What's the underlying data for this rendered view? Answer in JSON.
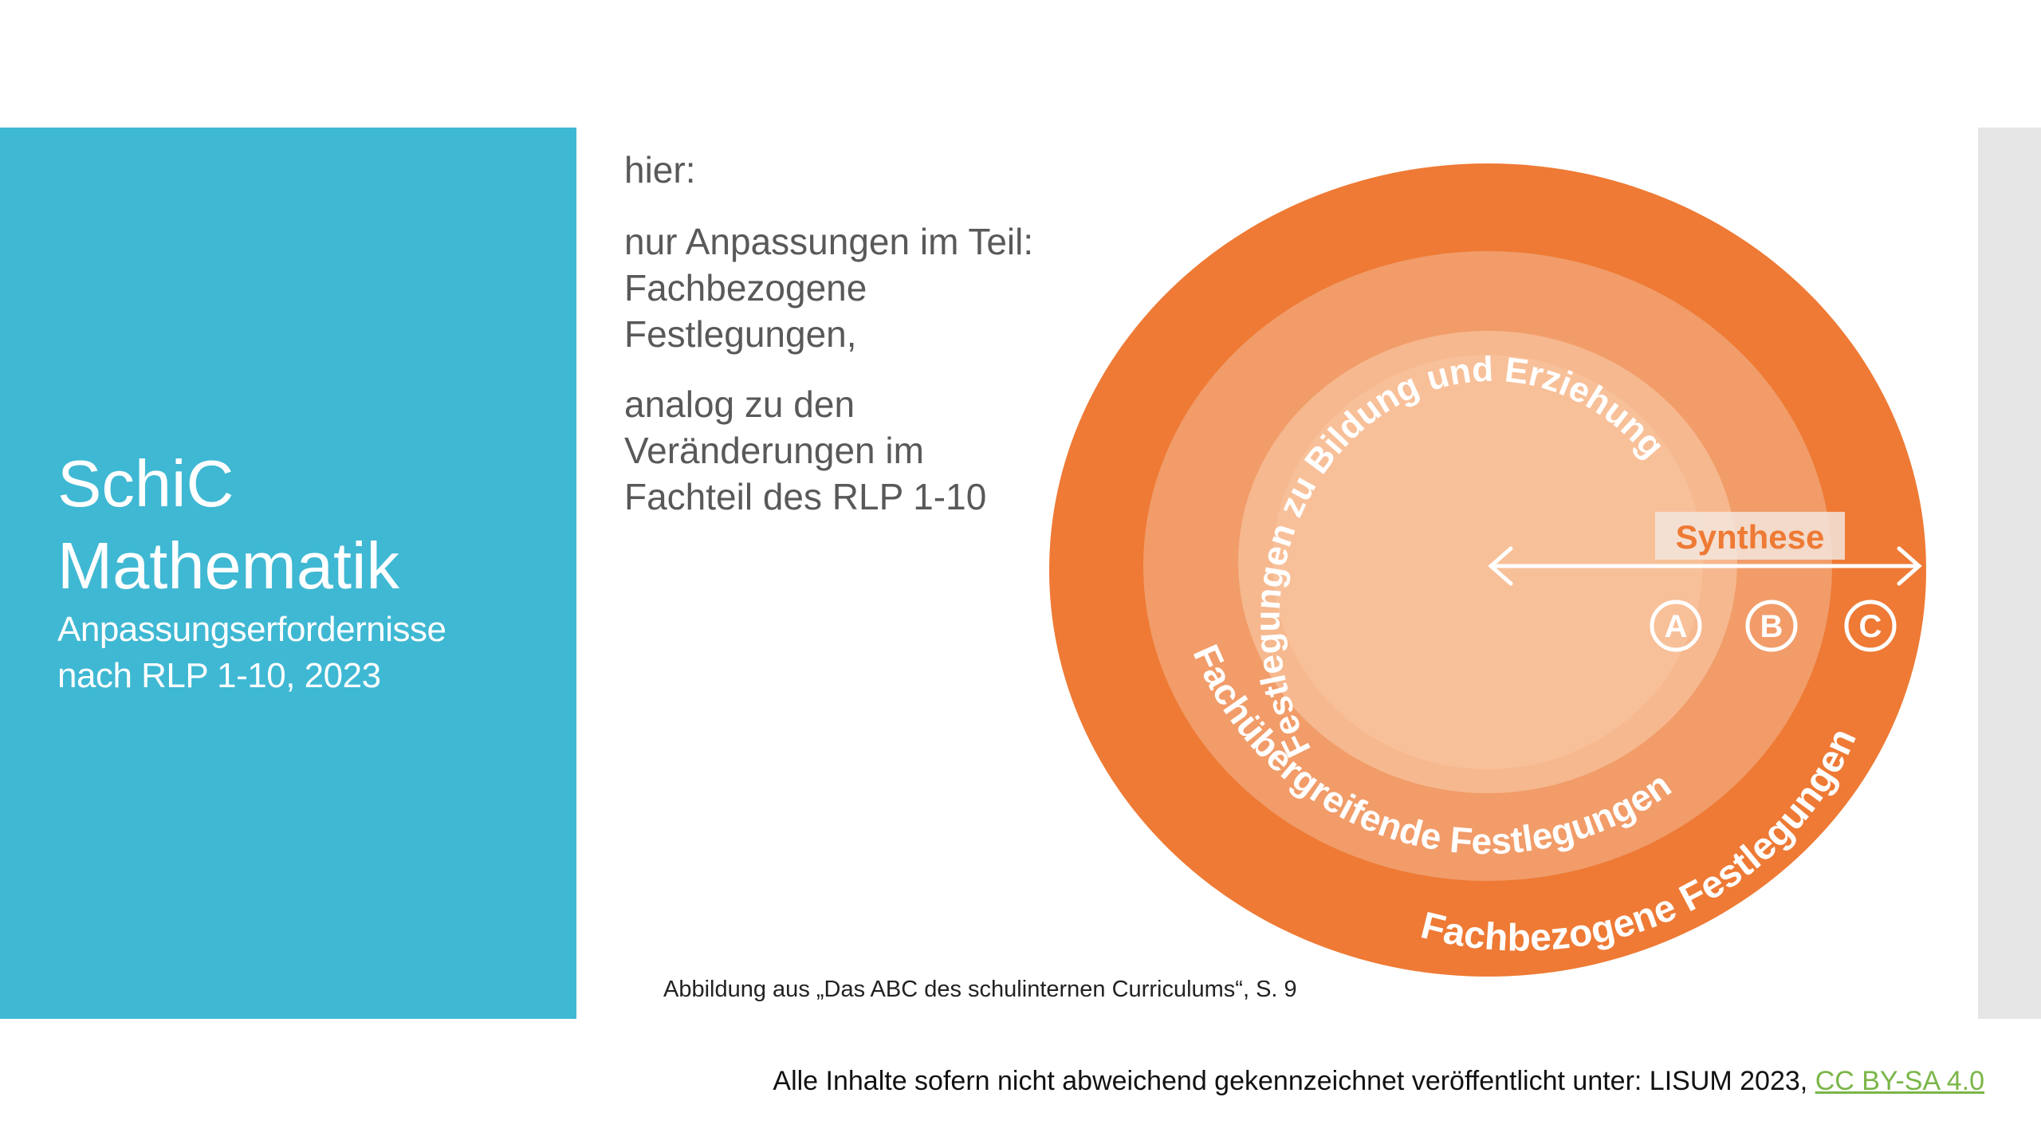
{
  "title": {
    "line1": "SchiC",
    "line2": "Mathematik",
    "subtitle_line1": "Anpassungserfordernisse",
    "subtitle_line2": "nach RLP 1-10, 2023"
  },
  "body": {
    "p1": "hier:",
    "p2_line1": "nur Anpassungen im Teil:",
    "p2_line2": "Fachbezogene",
    "p2_line3": "Festlegungen,",
    "p3_line1": "analog zu den",
    "p3_line2": "Veränderungen im",
    "p3_line3": "Fachteil des RLP 1-10"
  },
  "diagram": {
    "inner_ring": "Festlegungen zu Bildung und Erziehung",
    "middle_ring": "Fachübergreifende Festlegungen",
    "outer_ring": "Fachbezogene Festlegungen",
    "synthese": "Synthese",
    "marker_a": "A",
    "marker_b": "B",
    "marker_c": "C",
    "colors": {
      "outer": "#ee7a35",
      "middle": "#f19c69",
      "inner": "#f6bc94",
      "core": "#f9c8a4"
    }
  },
  "caption": "Abbildung aus „Das ABC des schulinternen Curriculums“, S. 9",
  "footer": {
    "text": "Alle Inhalte sofern nicht abweichend gekennzeichnet veröffentlicht unter: LISUM 2023, ",
    "license_link": "CC BY-SA 4.0"
  }
}
